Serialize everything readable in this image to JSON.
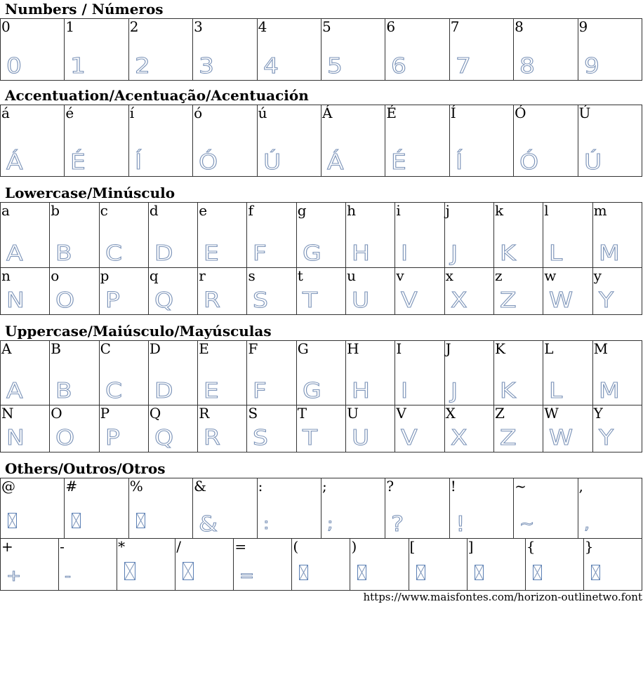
{
  "sections": [
    {
      "title": "Numbers / Números",
      "rows": [
        [
          "0",
          "1",
          "2",
          "3",
          "4",
          "5",
          "6",
          "7",
          "8",
          "9"
        ]
      ],
      "heights": [
        88
      ],
      "missing": []
    },
    {
      "title": "Accentuation/Acentuação/Acentuación",
      "rows": [
        [
          "á",
          "é",
          "í",
          "ó",
          "ú",
          "Á",
          "É",
          "Í",
          "Ó",
          "Ú"
        ]
      ],
      "heights": [
        102
      ],
      "missing": []
    },
    {
      "title": "Lowercase/Minúsculo",
      "rows": [
        [
          "a",
          "b",
          "c",
          "d",
          "e",
          "f",
          "g",
          "h",
          "i",
          "j",
          "k",
          "l",
          "m"
        ],
        [
          "n",
          "o",
          "p",
          "q",
          "r",
          "s",
          "t",
          "u",
          "v",
          "x",
          "z",
          "w",
          "y"
        ]
      ],
      "heights": [
        93,
        67
      ],
      "missing": []
    },
    {
      "title": "Uppercase/Maiúsculo/Mayúsculas",
      "rows": [
        [
          "A",
          "B",
          "C",
          "D",
          "E",
          "F",
          "G",
          "H",
          "I",
          "J",
          "K",
          "L",
          "M"
        ],
        [
          "N",
          "O",
          "P",
          "Q",
          "R",
          "S",
          "T",
          "U",
          "V",
          "X",
          "Z",
          "W",
          "Y"
        ]
      ],
      "heights": [
        92,
        67
      ],
      "missing": []
    },
    {
      "title": "Others/Outros/Otros",
      "rows": [
        [
          "@",
          "#",
          "%",
          "&",
          ":",
          ";",
          "?",
          "!",
          "~",
          ","
        ],
        [
          "+",
          "-",
          "*",
          "/",
          "=",
          "(",
          ")",
          "[",
          "]",
          "{",
          "}"
        ]
      ],
      "heights": [
        86,
        74
      ],
      "missing": [
        "@",
        "#",
        "%",
        "*",
        "/",
        "(",
        ")",
        "[",
        "]",
        "{",
        "}"
      ]
    }
  ],
  "footer_url": "https://www.maisfontes.com/horizon-outlinetwo.font",
  "colors": {
    "glyph_outline": "#7b93b8",
    "border": "#333333"
  }
}
